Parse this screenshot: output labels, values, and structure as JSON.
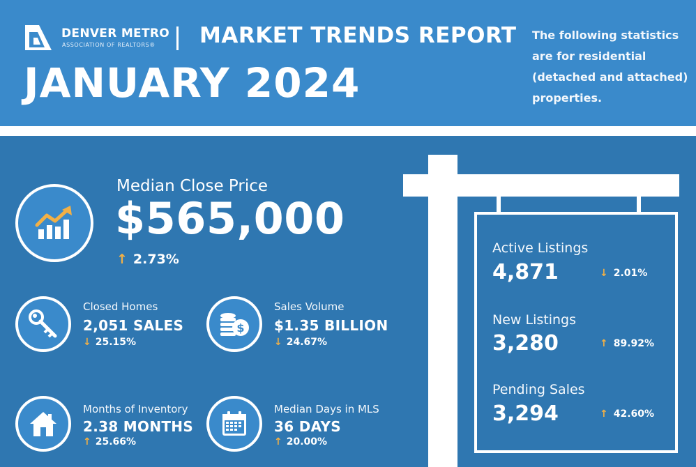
{
  "header": {
    "org_name": "DENVER METRO",
    "org_sub": "ASSOCIATION OF REALTORS®",
    "report_title": "MARKET TRENDS REPORT",
    "month_title": "JANUARY 2024",
    "note": "The following statistics are for residential (detached and attached) properties."
  },
  "median_close_price": {
    "label": "Median Close Price",
    "value": "$565,000",
    "change": "2.73%",
    "direction": "up",
    "icon": "chart-up-icon"
  },
  "stats": {
    "closed_homes": {
      "label": "Closed Homes",
      "value": "2,051 SALES",
      "change": "25.15%",
      "direction": "down",
      "icon": "key-icon"
    },
    "sales_volume": {
      "label": "Sales Volume",
      "value": "$1.35 BILLION",
      "change": "24.67%",
      "direction": "down",
      "icon": "coins-icon"
    },
    "months_inventory": {
      "label": "Months of Inventory",
      "value": "2.38 MONTHS",
      "change": "25.66%",
      "direction": "up",
      "icon": "house-icon"
    },
    "median_days": {
      "label": "Median Days in MLS",
      "value": "36 DAYS",
      "change": "20.00%",
      "direction": "up",
      "icon": "calendar-icon"
    }
  },
  "sign": {
    "active": {
      "label": "Active Listings",
      "value": "4,871",
      "change": "2.01%",
      "direction": "down"
    },
    "new": {
      "label": "New Listings",
      "value": "3,280",
      "change": "89.92%",
      "direction": "up"
    },
    "pending": {
      "label": "Pending Sales",
      "value": "3,294",
      "change": "42.60%",
      "direction": "up"
    }
  },
  "colors": {
    "header_bg": "#3a8acb",
    "main_bg": "#2f77b1",
    "arrow": "#f2b046"
  },
  "arrows": {
    "up": "↑",
    "down": "↓"
  }
}
